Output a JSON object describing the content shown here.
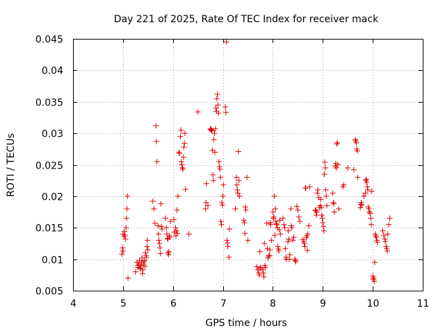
{
  "chart_data": {
    "type": "scatter",
    "title": "Day 221 of 2025, Rate Of TEC Index for receiver mack",
    "xlabel": "GPS time / hours",
    "ylabel": "ROTI / TECUs",
    "xlim": [
      4,
      11
    ],
    "ylim": [
      0.005,
      0.045
    ],
    "xticks": [
      "4",
      "5",
      "6",
      "7",
      "8",
      "9",
      "10",
      "11"
    ],
    "yticks": [
      "0.005",
      "0.01",
      "0.015",
      "0.02",
      "0.025",
      "0.03",
      "0.035",
      "0.04",
      "0.045"
    ],
    "grid": true,
    "marker": "plus",
    "color": "#e00000",
    "series": [
      {
        "name": "ROTI",
        "points": [
          [
            4.98,
            0.0108
          ],
          [
            4.99,
            0.0118
          ],
          [
            5.0,
            0.0113
          ],
          [
            5.0,
            0.014
          ],
          [
            5.02,
            0.0136
          ],
          [
            5.03,
            0.0144
          ],
          [
            5.04,
            0.0138
          ],
          [
            5.05,
            0.0132
          ],
          [
            5.06,
            0.015
          ],
          [
            5.07,
            0.0165
          ],
          [
            5.08,
            0.018
          ],
          [
            5.09,
            0.02
          ],
          [
            5.1,
            0.007
          ],
          [
            5.25,
            0.008
          ],
          [
            5.28,
            0.0095
          ],
          [
            5.3,
            0.009
          ],
          [
            5.3,
            0.0087
          ],
          [
            5.32,
            0.0092
          ],
          [
            5.33,
            0.0098
          ],
          [
            5.34,
            0.0086
          ],
          [
            5.35,
            0.0085
          ],
          [
            5.36,
            0.009
          ],
          [
            5.37,
            0.0095
          ],
          [
            5.38,
            0.0102
          ],
          [
            5.39,
            0.0077
          ],
          [
            5.4,
            0.0083
          ],
          [
            5.41,
            0.0092
          ],
          [
            5.42,
            0.0096
          ],
          [
            5.43,
            0.0098
          ],
          [
            5.44,
            0.0089
          ],
          [
            5.45,
            0.011
          ],
          [
            5.46,
            0.0106
          ],
          [
            5.47,
            0.0103
          ],
          [
            5.48,
            0.012
          ],
          [
            5.49,
            0.013
          ],
          [
            5.5,
            0.0115
          ],
          [
            5.6,
            0.0192
          ],
          [
            5.62,
            0.018
          ],
          [
            5.64,
            0.0157
          ],
          [
            5.66,
            0.0312
          ],
          [
            5.67,
            0.0287
          ],
          [
            5.68,
            0.0255
          ],
          [
            5.7,
            0.0153
          ],
          [
            5.71,
            0.014
          ],
          [
            5.72,
            0.013
          ],
          [
            5.73,
            0.0125
          ],
          [
            5.74,
            0.0118
          ],
          [
            5.75,
            0.0109
          ],
          [
            5.76,
            0.0188
          ],
          [
            5.77,
            0.0152
          ],
          [
            5.78,
            0.0148
          ],
          [
            5.85,
            0.0165
          ],
          [
            5.87,
            0.015
          ],
          [
            5.88,
            0.014
          ],
          [
            5.89,
            0.0133
          ],
          [
            5.9,
            0.0132
          ],
          [
            5.9,
            0.011
          ],
          [
            5.91,
            0.0107
          ],
          [
            5.92,
            0.0112
          ],
          [
            5.93,
            0.0137
          ],
          [
            5.94,
            0.0135
          ],
          [
            5.95,
            0.016
          ],
          [
            6.02,
            0.0163
          ],
          [
            6.03,
            0.0143
          ],
          [
            6.05,
            0.015
          ],
          [
            6.06,
            0.0137
          ],
          [
            6.07,
            0.0145
          ],
          [
            6.08,
            0.0178
          ],
          [
            6.09,
            0.0141
          ],
          [
            6.1,
            0.02
          ],
          [
            6.12,
            0.027
          ],
          [
            6.13,
            0.0268
          ],
          [
            6.15,
            0.0295
          ],
          [
            6.16,
            0.0305
          ],
          [
            6.17,
            0.0255
          ],
          [
            6.18,
            0.025
          ],
          [
            6.19,
            0.0245
          ],
          [
            6.2,
            0.0243
          ],
          [
            6.21,
            0.0262
          ],
          [
            6.22,
            0.0278
          ],
          [
            6.23,
            0.0284
          ],
          [
            6.24,
            0.03
          ],
          [
            6.25,
            0.0211
          ],
          [
            6.32,
            0.014
          ],
          [
            6.5,
            0.0334
          ],
          [
            6.65,
            0.018
          ],
          [
            6.66,
            0.019
          ],
          [
            6.67,
            0.022
          ],
          [
            6.7,
            0.0185
          ],
          [
            6.75,
            0.0307
          ],
          [
            6.76,
            0.0306
          ],
          [
            6.77,
            0.0305
          ],
          [
            6.78,
            0.0304
          ],
          [
            6.79,
            0.0273
          ],
          [
            6.8,
            0.0234
          ],
          [
            6.81,
            0.0225
          ],
          [
            6.82,
            0.029
          ],
          [
            6.83,
            0.03
          ],
          [
            6.84,
            0.027
          ],
          [
            6.85,
            0.0307
          ],
          [
            6.86,
            0.034
          ],
          [
            6.87,
            0.0335
          ],
          [
            6.88,
            0.0355
          ],
          [
            6.89,
            0.0362
          ],
          [
            6.9,
            0.0345
          ],
          [
            6.91,
            0.0332
          ],
          [
            6.92,
            0.0255
          ],
          [
            6.93,
            0.0247
          ],
          [
            6.94,
            0.0243
          ],
          [
            6.95,
            0.023
          ],
          [
            6.96,
            0.016
          ],
          [
            6.97,
            0.0155
          ],
          [
            6.98,
            0.019
          ],
          [
            6.99,
            0.0186
          ],
          [
            7.0,
            0.02
          ],
          [
            7.01,
            0.0218
          ],
          [
            7.05,
            0.0342
          ],
          [
            7.06,
            0.0333
          ],
          [
            7.07,
            0.0445
          ],
          [
            7.08,
            0.013
          ],
          [
            7.09,
            0.0126
          ],
          [
            7.1,
            0.012
          ],
          [
            7.12,
            0.0103
          ],
          [
            7.13,
            0.0148
          ],
          [
            7.25,
            0.018
          ],
          [
            7.27,
            0.023
          ],
          [
            7.28,
            0.0218
          ],
          [
            7.29,
            0.021
          ],
          [
            7.3,
            0.0205
          ],
          [
            7.31,
            0.0271
          ],
          [
            7.32,
            0.0225
          ],
          [
            7.33,
            0.02
          ],
          [
            7.42,
            0.0162
          ],
          [
            7.43,
            0.0158
          ],
          [
            7.44,
            0.0141
          ],
          [
            7.45,
            0.0183
          ],
          [
            7.46,
            0.0178
          ],
          [
            7.48,
            0.023
          ],
          [
            7.5,
            0.013
          ],
          [
            7.68,
            0.0088
          ],
          [
            7.7,
            0.0083
          ],
          [
            7.72,
            0.0078
          ],
          [
            7.73,
            0.0075
          ],
          [
            7.74,
            0.0112
          ],
          [
            7.75,
            0.0087
          ],
          [
            7.76,
            0.0085
          ],
          [
            7.8,
            0.0083
          ],
          [
            7.81,
            0.0078
          ],
          [
            7.82,
            0.0072
          ],
          [
            7.83,
            0.0125
          ],
          [
            7.84,
            0.009
          ],
          [
            7.85,
            0.0087
          ],
          [
            7.88,
            0.0157
          ],
          [
            7.89,
            0.0117
          ],
          [
            7.9,
            0.0102
          ],
          [
            7.92,
            0.0105
          ],
          [
            7.93,
            0.0106
          ],
          [
            7.94,
            0.0115
          ],
          [
            7.95,
            0.0158
          ],
          [
            7.96,
            0.0155
          ],
          [
            7.97,
            0.013
          ],
          [
            8.0,
            0.0175
          ],
          [
            8.01,
            0.0165
          ],
          [
            8.02,
            0.0167
          ],
          [
            8.03,
            0.02
          ],
          [
            8.04,
            0.0138
          ],
          [
            8.05,
            0.018
          ],
          [
            8.06,
            0.016
          ],
          [
            8.07,
            0.0156
          ],
          [
            8.08,
            0.0155
          ],
          [
            8.09,
            0.015
          ],
          [
            8.1,
            0.012
          ],
          [
            8.11,
            0.0116
          ],
          [
            8.12,
            0.0113
          ],
          [
            8.13,
            0.0147
          ],
          [
            8.14,
            0.0162
          ],
          [
            8.15,
            0.014
          ],
          [
            8.2,
            0.0165
          ],
          [
            8.22,
            0.0155
          ],
          [
            8.24,
            0.015
          ],
          [
            8.25,
            0.0117
          ],
          [
            8.26,
            0.0103
          ],
          [
            8.27,
            0.01
          ],
          [
            8.3,
            0.0128
          ],
          [
            8.31,
            0.0145
          ],
          [
            8.32,
            0.0132
          ],
          [
            8.33,
            0.01
          ],
          [
            8.34,
            0.0107
          ],
          [
            8.36,
            0.018
          ],
          [
            8.37,
            0.0153
          ],
          [
            8.38,
            0.015
          ],
          [
            8.4,
            0.013
          ],
          [
            8.42,
            0.0135
          ],
          [
            8.44,
            0.01
          ],
          [
            8.45,
            0.0098
          ],
          [
            8.46,
            0.0096
          ],
          [
            8.48,
            0.0184
          ],
          [
            8.5,
            0.0178
          ],
          [
            8.52,
            0.0167
          ],
          [
            8.54,
            0.016
          ],
          [
            8.6,
            0.0131
          ],
          [
            8.62,
            0.0128
          ],
          [
            8.63,
            0.0125
          ],
          [
            8.64,
            0.012
          ],
          [
            8.65,
            0.0213
          ],
          [
            8.66,
            0.0213
          ],
          [
            8.67,
            0.0134
          ],
          [
            8.68,
            0.0137
          ],
          [
            8.69,
            0.0114
          ],
          [
            8.7,
            0.014
          ],
          [
            8.72,
            0.0153
          ],
          [
            8.74,
            0.0215
          ],
          [
            8.85,
            0.0178
          ],
          [
            8.86,
            0.0177
          ],
          [
            8.87,
            0.017
          ],
          [
            8.88,
            0.0175
          ],
          [
            8.89,
            0.0205
          ],
          [
            8.9,
            0.021
          ],
          [
            8.92,
            0.0198
          ],
          [
            8.93,
            0.0182
          ],
          [
            8.95,
            0.0185
          ],
          [
            8.96,
            0.0195
          ],
          [
            8.97,
            0.0182
          ],
          [
            8.98,
            0.017
          ],
          [
            8.99,
            0.0165
          ],
          [
            9.0,
            0.0158
          ],
          [
            9.01,
            0.0152
          ],
          [
            9.02,
            0.0145
          ],
          [
            9.03,
            0.0235
          ],
          [
            9.04,
            0.0254
          ],
          [
            9.05,
            0.0245
          ],
          [
            9.06,
            0.021
          ],
          [
            9.07,
            0.02
          ],
          [
            9.08,
            0.0185
          ],
          [
            9.2,
            0.0205
          ],
          [
            9.21,
            0.019
          ],
          [
            9.22,
            0.0188
          ],
          [
            9.23,
            0.0175
          ],
          [
            9.25,
            0.0248
          ],
          [
            9.26,
            0.0252
          ],
          [
            9.27,
            0.0245
          ],
          [
            9.28,
            0.0283
          ],
          [
            9.29,
            0.0285
          ],
          [
            9.3,
            0.025
          ],
          [
            9.32,
            0.018
          ],
          [
            9.4,
            0.0215
          ],
          [
            9.42,
            0.0218
          ],
          [
            9.5,
            0.0245
          ],
          [
            9.62,
            0.0242
          ],
          [
            9.65,
            0.029
          ],
          [
            9.66,
            0.0288
          ],
          [
            9.67,
            0.0285
          ],
          [
            9.68,
            0.0275
          ],
          [
            9.69,
            0.0272
          ],
          [
            9.7,
            0.023
          ],
          [
            9.75,
            0.0182
          ],
          [
            9.76,
            0.0187
          ],
          [
            9.77,
            0.019
          ],
          [
            9.78,
            0.0186
          ],
          [
            9.82,
            0.02
          ],
          [
            9.85,
            0.0205
          ],
          [
            9.86,
            0.0225
          ],
          [
            9.87,
            0.0227
          ],
          [
            9.88,
            0.0222
          ],
          [
            9.89,
            0.0215
          ],
          [
            9.9,
            0.021
          ],
          [
            9.91,
            0.0183
          ],
          [
            9.92,
            0.018
          ],
          [
            9.93,
            0.0175
          ],
          [
            9.95,
            0.0173
          ],
          [
            9.96,
            0.0165
          ],
          [
            9.97,
            0.0155
          ],
          [
            9.98,
            0.0208
          ],
          [
            10.0,
            0.0073
          ],
          [
            10.01,
            0.0068
          ],
          [
            10.02,
            0.007
          ],
          [
            10.03,
            0.0065
          ],
          [
            10.04,
            0.0095
          ],
          [
            10.05,
            0.014
          ],
          [
            10.06,
            0.0137
          ],
          [
            10.07,
            0.0135
          ],
          [
            10.08,
            0.013
          ],
          [
            10.09,
            0.0127
          ],
          [
            10.2,
            0.0145
          ],
          [
            10.22,
            0.0138
          ],
          [
            10.24,
            0.0132
          ],
          [
            10.25,
            0.0128
          ],
          [
            10.27,
            0.012
          ],
          [
            10.28,
            0.0117
          ],
          [
            10.29,
            0.0113
          ],
          [
            10.3,
            0.014
          ],
          [
            10.32,
            0.0155
          ],
          [
            10.34,
            0.0165
          ]
        ]
      }
    ]
  }
}
